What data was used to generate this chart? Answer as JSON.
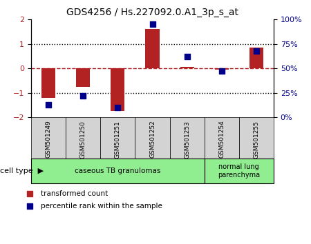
{
  "title": "GDS4256 / Hs.227092.0.A1_3p_s_at",
  "samples": [
    "GSM501249",
    "GSM501250",
    "GSM501251",
    "GSM501252",
    "GSM501253",
    "GSM501254",
    "GSM501255"
  ],
  "transformed_counts": [
    -1.2,
    -0.75,
    -1.75,
    1.6,
    0.05,
    -0.05,
    0.85
  ],
  "percentile_ranks": [
    13,
    22,
    10,
    95,
    62,
    47,
    68
  ],
  "ylim_left": [
    -2,
    2
  ],
  "ylim_right": [
    0,
    100
  ],
  "yticks_left": [
    -2,
    -1,
    0,
    1,
    2
  ],
  "yticks_right": [
    0,
    25,
    50,
    75,
    100
  ],
  "ytick_labels_right": [
    "0%",
    "25%",
    "50%",
    "75%",
    "100%"
  ],
  "hline_y": 0,
  "dotted_lines": [
    -1,
    1
  ],
  "bar_color": "#b22222",
  "dot_color": "#00008b",
  "bar_width": 0.4,
  "dot_size": 60,
  "cell_types": [
    {
      "label": "caseous TB granulomas",
      "indices": [
        0,
        1,
        2,
        3,
        4
      ],
      "color": "#90ee90"
    },
    {
      "label": "normal lung\nparenchyma",
      "indices": [
        5,
        6
      ],
      "color": "#90ee90"
    }
  ],
  "cell_type_label": "cell type",
  "legend_red_label": "transformed count",
  "legend_blue_label": "percentile rank within the sample",
  "background_color": "#ffffff"
}
